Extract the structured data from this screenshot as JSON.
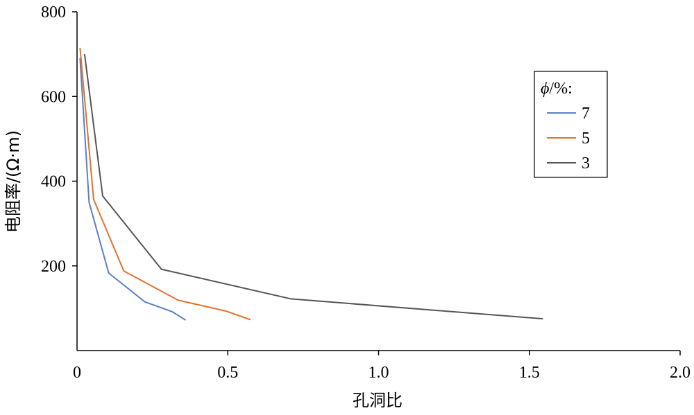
{
  "chart_data": {
    "type": "line",
    "xlabel": "孔洞比",
    "ylabel": "电阻率/(Ω·m)",
    "xlim": [
      0,
      2.0
    ],
    "ylim": [
      0,
      800
    ],
    "x_ticks": [
      "0",
      "0.5",
      "1.0",
      "1.5",
      "2.0"
    ],
    "y_ticks": [
      "200",
      "400",
      "600",
      "800"
    ],
    "grid": false,
    "legend": {
      "title_symbol": "ϕ",
      "title_suffix": "/%:",
      "placement": "right"
    },
    "series": [
      {
        "name": "7",
        "color": "#5b7fc4",
        "x": [
          0.01,
          0.04,
          0.105,
          0.225,
          0.315,
          0.36
        ],
        "y": [
          690,
          350,
          183,
          115,
          92,
          72
        ]
      },
      {
        "name": "5",
        "color": "#e2712b",
        "x": [
          0.01,
          0.055,
          0.155,
          0.335,
          0.495,
          0.575
        ],
        "y": [
          715,
          357,
          188,
          119,
          93,
          73
        ]
      },
      {
        "name": "3",
        "color": "#555555",
        "x": [
          0.025,
          0.085,
          0.28,
          0.71,
          1.545
        ],
        "y": [
          700,
          365,
          192,
          122,
          75
        ]
      }
    ]
  }
}
